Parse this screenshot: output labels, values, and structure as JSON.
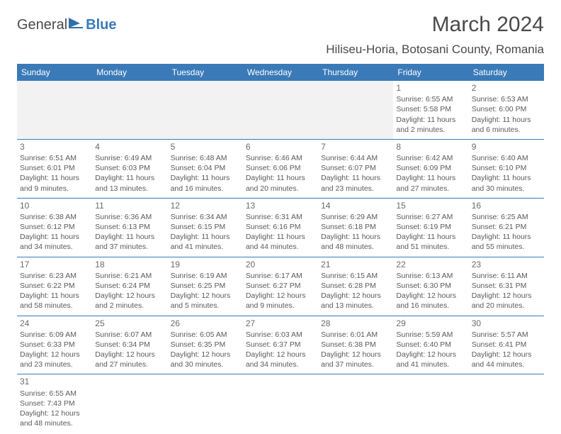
{
  "logo": {
    "textA": "General",
    "textB": "Blue"
  },
  "title": "March 2024",
  "location": "Hiliseu-Horia, Botosani County, Romania",
  "colors": {
    "header_bg": "#3a7ab8",
    "header_fg": "#ffffff",
    "border": "#3a7ab8",
    "page_bg": "#ffffff",
    "text": "#5a5a5a"
  },
  "day_headers": [
    "Sunday",
    "Monday",
    "Tuesday",
    "Wednesday",
    "Thursday",
    "Friday",
    "Saturday"
  ],
  "weeks": [
    [
      null,
      null,
      null,
      null,
      null,
      {
        "day": "1",
        "sunrise": "Sunrise: 6:55 AM",
        "sunset": "Sunset: 5:58 PM",
        "daylight": "Daylight: 11 hours and 2 minutes."
      },
      {
        "day": "2",
        "sunrise": "Sunrise: 6:53 AM",
        "sunset": "Sunset: 6:00 PM",
        "daylight": "Daylight: 11 hours and 6 minutes."
      }
    ],
    [
      {
        "day": "3",
        "sunrise": "Sunrise: 6:51 AM",
        "sunset": "Sunset: 6:01 PM",
        "daylight": "Daylight: 11 hours and 9 minutes."
      },
      {
        "day": "4",
        "sunrise": "Sunrise: 6:49 AM",
        "sunset": "Sunset: 6:03 PM",
        "daylight": "Daylight: 11 hours and 13 minutes."
      },
      {
        "day": "5",
        "sunrise": "Sunrise: 6:48 AM",
        "sunset": "Sunset: 6:04 PM",
        "daylight": "Daylight: 11 hours and 16 minutes."
      },
      {
        "day": "6",
        "sunrise": "Sunrise: 6:46 AM",
        "sunset": "Sunset: 6:06 PM",
        "daylight": "Daylight: 11 hours and 20 minutes."
      },
      {
        "day": "7",
        "sunrise": "Sunrise: 6:44 AM",
        "sunset": "Sunset: 6:07 PM",
        "daylight": "Daylight: 11 hours and 23 minutes."
      },
      {
        "day": "8",
        "sunrise": "Sunrise: 6:42 AM",
        "sunset": "Sunset: 6:09 PM",
        "daylight": "Daylight: 11 hours and 27 minutes."
      },
      {
        "day": "9",
        "sunrise": "Sunrise: 6:40 AM",
        "sunset": "Sunset: 6:10 PM",
        "daylight": "Daylight: 11 hours and 30 minutes."
      }
    ],
    [
      {
        "day": "10",
        "sunrise": "Sunrise: 6:38 AM",
        "sunset": "Sunset: 6:12 PM",
        "daylight": "Daylight: 11 hours and 34 minutes."
      },
      {
        "day": "11",
        "sunrise": "Sunrise: 6:36 AM",
        "sunset": "Sunset: 6:13 PM",
        "daylight": "Daylight: 11 hours and 37 minutes."
      },
      {
        "day": "12",
        "sunrise": "Sunrise: 6:34 AM",
        "sunset": "Sunset: 6:15 PM",
        "daylight": "Daylight: 11 hours and 41 minutes."
      },
      {
        "day": "13",
        "sunrise": "Sunrise: 6:31 AM",
        "sunset": "Sunset: 6:16 PM",
        "daylight": "Daylight: 11 hours and 44 minutes."
      },
      {
        "day": "14",
        "sunrise": "Sunrise: 6:29 AM",
        "sunset": "Sunset: 6:18 PM",
        "daylight": "Daylight: 11 hours and 48 minutes."
      },
      {
        "day": "15",
        "sunrise": "Sunrise: 6:27 AM",
        "sunset": "Sunset: 6:19 PM",
        "daylight": "Daylight: 11 hours and 51 minutes."
      },
      {
        "day": "16",
        "sunrise": "Sunrise: 6:25 AM",
        "sunset": "Sunset: 6:21 PM",
        "daylight": "Daylight: 11 hours and 55 minutes."
      }
    ],
    [
      {
        "day": "17",
        "sunrise": "Sunrise: 6:23 AM",
        "sunset": "Sunset: 6:22 PM",
        "daylight": "Daylight: 11 hours and 58 minutes."
      },
      {
        "day": "18",
        "sunrise": "Sunrise: 6:21 AM",
        "sunset": "Sunset: 6:24 PM",
        "daylight": "Daylight: 12 hours and 2 minutes."
      },
      {
        "day": "19",
        "sunrise": "Sunrise: 6:19 AM",
        "sunset": "Sunset: 6:25 PM",
        "daylight": "Daylight: 12 hours and 5 minutes."
      },
      {
        "day": "20",
        "sunrise": "Sunrise: 6:17 AM",
        "sunset": "Sunset: 6:27 PM",
        "daylight": "Daylight: 12 hours and 9 minutes."
      },
      {
        "day": "21",
        "sunrise": "Sunrise: 6:15 AM",
        "sunset": "Sunset: 6:28 PM",
        "daylight": "Daylight: 12 hours and 13 minutes."
      },
      {
        "day": "22",
        "sunrise": "Sunrise: 6:13 AM",
        "sunset": "Sunset: 6:30 PM",
        "daylight": "Daylight: 12 hours and 16 minutes."
      },
      {
        "day": "23",
        "sunrise": "Sunrise: 6:11 AM",
        "sunset": "Sunset: 6:31 PM",
        "daylight": "Daylight: 12 hours and 20 minutes."
      }
    ],
    [
      {
        "day": "24",
        "sunrise": "Sunrise: 6:09 AM",
        "sunset": "Sunset: 6:33 PM",
        "daylight": "Daylight: 12 hours and 23 minutes."
      },
      {
        "day": "25",
        "sunrise": "Sunrise: 6:07 AM",
        "sunset": "Sunset: 6:34 PM",
        "daylight": "Daylight: 12 hours and 27 minutes."
      },
      {
        "day": "26",
        "sunrise": "Sunrise: 6:05 AM",
        "sunset": "Sunset: 6:35 PM",
        "daylight": "Daylight: 12 hours and 30 minutes."
      },
      {
        "day": "27",
        "sunrise": "Sunrise: 6:03 AM",
        "sunset": "Sunset: 6:37 PM",
        "daylight": "Daylight: 12 hours and 34 minutes."
      },
      {
        "day": "28",
        "sunrise": "Sunrise: 6:01 AM",
        "sunset": "Sunset: 6:38 PM",
        "daylight": "Daylight: 12 hours and 37 minutes."
      },
      {
        "day": "29",
        "sunrise": "Sunrise: 5:59 AM",
        "sunset": "Sunset: 6:40 PM",
        "daylight": "Daylight: 12 hours and 41 minutes."
      },
      {
        "day": "30",
        "sunrise": "Sunrise: 5:57 AM",
        "sunset": "Sunset: 6:41 PM",
        "daylight": "Daylight: 12 hours and 44 minutes."
      }
    ],
    [
      {
        "day": "31",
        "sunrise": "Sunrise: 6:55 AM",
        "sunset": "Sunset: 7:43 PM",
        "daylight": "Daylight: 12 hours and 48 minutes."
      },
      null,
      null,
      null,
      null,
      null,
      null
    ]
  ]
}
